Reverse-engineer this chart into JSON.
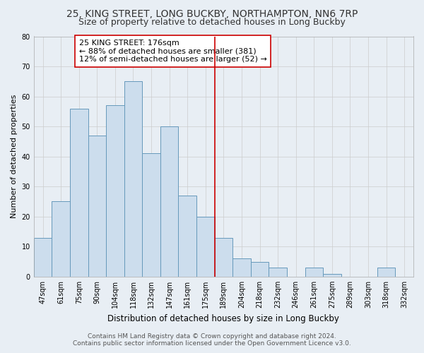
{
  "title": "25, KING STREET, LONG BUCKBY, NORTHAMPTON, NN6 7RP",
  "subtitle": "Size of property relative to detached houses in Long Buckby",
  "xlabel": "Distribution of detached houses by size in Long Buckby",
  "ylabel": "Number of detached properties",
  "bar_labels": [
    "47sqm",
    "61sqm",
    "75sqm",
    "90sqm",
    "104sqm",
    "118sqm",
    "132sqm",
    "147sqm",
    "161sqm",
    "175sqm",
    "189sqm",
    "204sqm",
    "218sqm",
    "232sqm",
    "246sqm",
    "261sqm",
    "275sqm",
    "289sqm",
    "303sqm",
    "318sqm",
    "332sqm"
  ],
  "bar_values": [
    13,
    25,
    56,
    47,
    57,
    65,
    41,
    50,
    27,
    20,
    13,
    6,
    5,
    3,
    0,
    3,
    1,
    0,
    0,
    3,
    0
  ],
  "bar_color": "#ccdded",
  "bar_edge_color": "#6699bb",
  "vline_color": "#cc0000",
  "annotation_text": "25 KING STREET: 176sqm\n← 88% of detached houses are smaller (381)\n12% of semi-detached houses are larger (52) →",
  "annotation_box_facecolor": "#ffffff",
  "annotation_box_edgecolor": "#cc0000",
  "ylim": [
    0,
    80
  ],
  "yticks": [
    0,
    10,
    20,
    30,
    40,
    50,
    60,
    70,
    80
  ],
  "grid_color": "#cccccc",
  "bg_color": "#e8eef4",
  "plot_bg_color": "#e8eef4",
  "title_fontsize": 10,
  "subtitle_fontsize": 9,
  "tick_fontsize": 7,
  "ylabel_fontsize": 8,
  "xlabel_fontsize": 8.5,
  "annotation_fontsize": 8,
  "footer_fontsize": 6.5,
  "footer_line1": "Contains HM Land Registry data © Crown copyright and database right 2024.",
  "footer_line2": "Contains public sector information licensed under the Open Government Licence v3.0."
}
